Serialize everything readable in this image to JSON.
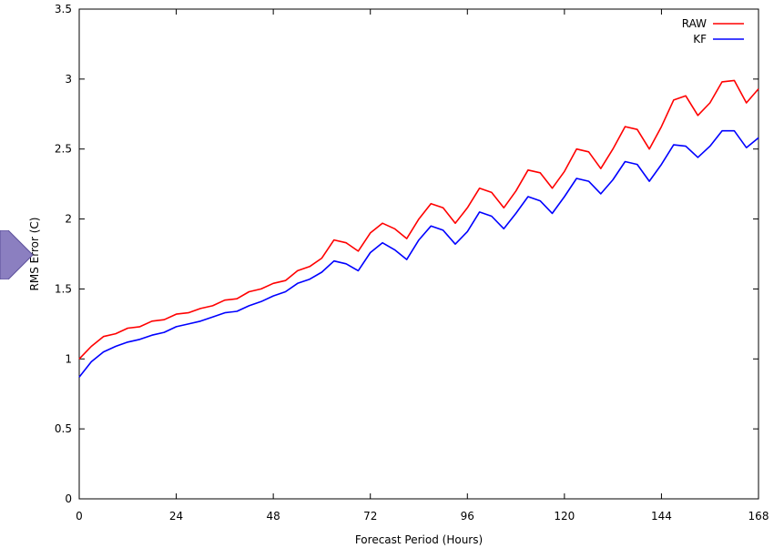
{
  "colors": {
    "raw": "#ff0000",
    "kf": "#0000ff",
    "arrow_fill": "#8b7fc0",
    "arrow_stroke": "#5b4f9a"
  },
  "icons": {
    "nav_arrow": "chevron-right-icon"
  },
  "chart_data": {
    "type": "line",
    "title": "",
    "xlabel": "Forecast Period (Hours)",
    "ylabel": "RMS Error (C)",
    "xlim": [
      0,
      168
    ],
    "ylim": [
      0,
      3.5
    ],
    "xticks": [
      0,
      24,
      48,
      72,
      96,
      120,
      144,
      168
    ],
    "xtick_labels": [
      "0",
      "24",
      "48",
      "72",
      "96",
      "120",
      "144",
      "168"
    ],
    "yticks": [
      0,
      0.5,
      1,
      1.5,
      2,
      2.5,
      3,
      3.5
    ],
    "ytick_labels": [
      "0",
      "0.5",
      "1",
      "1.5",
      "2",
      "2.5",
      "3",
      "3.5"
    ],
    "grid": false,
    "legend_position": "top-right",
    "series": [
      {
        "name": "RAW",
        "color": "#ff0000",
        "x": [
          0,
          3,
          6,
          9,
          12,
          15,
          18,
          21,
          24,
          27,
          30,
          33,
          36,
          39,
          42,
          45,
          48,
          51,
          54,
          57,
          60,
          63,
          66,
          69,
          72,
          75,
          78,
          81,
          84,
          87,
          90,
          93,
          96,
          99,
          102,
          105,
          108,
          111,
          114,
          117,
          120,
          123,
          126,
          129,
          132,
          135,
          138,
          141,
          144,
          147,
          150,
          153,
          156,
          159,
          162,
          165,
          168
        ],
        "y": [
          1.0,
          1.09,
          1.16,
          1.18,
          1.22,
          1.23,
          1.27,
          1.28,
          1.32,
          1.33,
          1.36,
          1.38,
          1.42,
          1.43,
          1.48,
          1.5,
          1.54,
          1.56,
          1.63,
          1.66,
          1.72,
          1.85,
          1.83,
          1.77,
          1.9,
          1.97,
          1.93,
          1.86,
          2.0,
          2.11,
          2.08,
          1.97,
          2.08,
          2.22,
          2.19,
          2.08,
          2.2,
          2.35,
          2.33,
          2.22,
          2.34,
          2.5,
          2.48,
          2.36,
          2.5,
          2.66,
          2.64,
          2.5,
          2.66,
          2.85,
          2.88,
          2.74,
          2.83,
          2.98,
          2.99,
          2.83,
          2.93
        ]
      },
      {
        "name": "KF",
        "color": "#0000ff",
        "x": [
          0,
          3,
          6,
          9,
          12,
          15,
          18,
          21,
          24,
          27,
          30,
          33,
          36,
          39,
          42,
          45,
          48,
          51,
          54,
          57,
          60,
          63,
          66,
          69,
          72,
          75,
          78,
          81,
          84,
          87,
          90,
          93,
          96,
          99,
          102,
          105,
          108,
          111,
          114,
          117,
          120,
          123,
          126,
          129,
          132,
          135,
          138,
          141,
          144,
          147,
          150,
          153,
          156,
          159,
          162,
          165,
          168
        ],
        "y": [
          0.87,
          0.98,
          1.05,
          1.09,
          1.12,
          1.14,
          1.17,
          1.19,
          1.23,
          1.25,
          1.27,
          1.3,
          1.33,
          1.34,
          1.38,
          1.41,
          1.45,
          1.48,
          1.54,
          1.57,
          1.62,
          1.7,
          1.68,
          1.63,
          1.76,
          1.83,
          1.78,
          1.71,
          1.85,
          1.95,
          1.92,
          1.82,
          1.91,
          2.05,
          2.02,
          1.93,
          2.04,
          2.16,
          2.13,
          2.04,
          2.16,
          2.29,
          2.27,
          2.18,
          2.28,
          2.41,
          2.39,
          2.27,
          2.39,
          2.53,
          2.52,
          2.44,
          2.52,
          2.63,
          2.63,
          2.51,
          2.58
        ]
      }
    ]
  }
}
